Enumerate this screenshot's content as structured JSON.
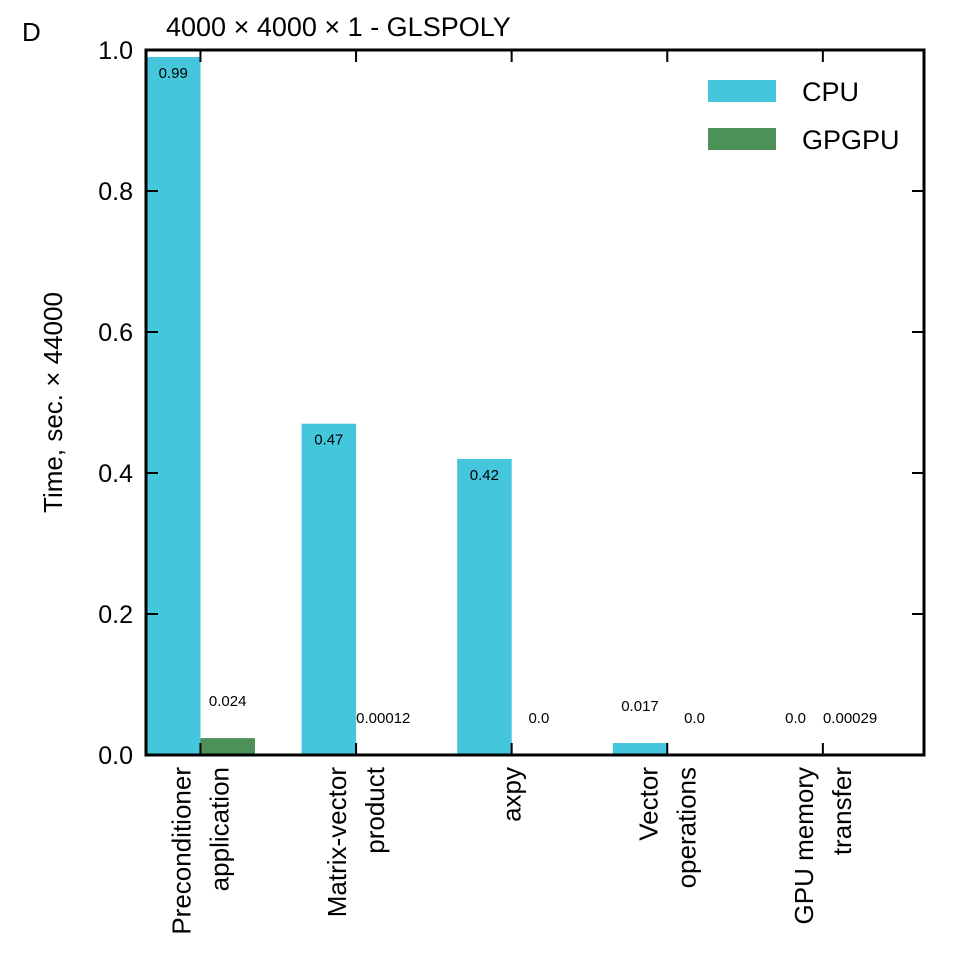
{
  "panel_label": "D",
  "chart_data": {
    "type": "bar",
    "title": "4000 × 4000 × 1 - GLSPOLY",
    "ylabel": "Time, sec. × 44000",
    "xlabel": "",
    "ylim": [
      0,
      1.0
    ],
    "yticks": [
      0.0,
      0.2,
      0.4,
      0.6,
      0.8,
      1.0
    ],
    "ytick_labels": [
      "0.0",
      "0.2",
      "0.4",
      "0.6",
      "0.8",
      "1.0"
    ],
    "grid": false,
    "legend_position": "top-right",
    "categories": [
      [
        "Preconditioner",
        "application"
      ],
      [
        "Matrix-vector",
        "product"
      ],
      [
        "axpy"
      ],
      [
        "Vector",
        "operations"
      ],
      [
        "GPU memory",
        "transfer"
      ]
    ],
    "series": [
      {
        "name": "CPU",
        "color": "#44c6dc",
        "values": [
          0.99,
          0.47,
          0.42,
          0.017,
          0.0
        ],
        "labels": [
          "0.99",
          "0.47",
          "0.42",
          "0.017",
          "0.0"
        ]
      },
      {
        "name": "GPGPU",
        "color": "#4e9158",
        "values": [
          0.024,
          0.00012,
          0.0,
          0.0,
          0.00029
        ],
        "labels": [
          "0.024",
          "0.00012",
          "0.0",
          "0.0",
          "0.00029"
        ]
      }
    ]
  }
}
